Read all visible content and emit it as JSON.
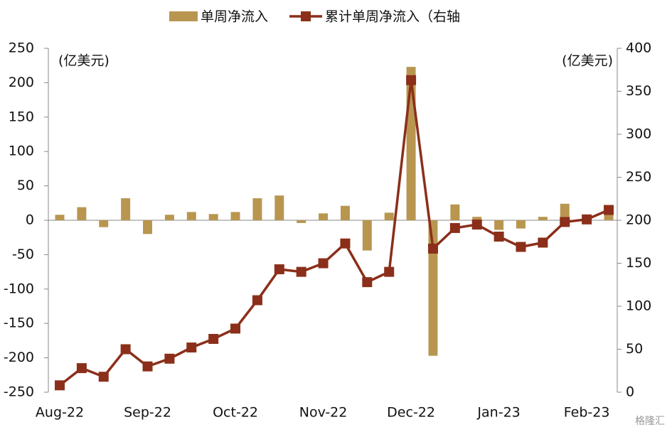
{
  "chart_data": {
    "type": "bar-line",
    "legend": "top",
    "y_label": "(亿美元)",
    "y2_label": "(亿美元)",
    "watermark": "格隆汇",
    "categories": [
      "Aug-22",
      null,
      null,
      null,
      "Sep-22",
      null,
      null,
      null,
      "Oct-22",
      null,
      null,
      null,
      "Nov-22",
      null,
      null,
      null,
      "Dec-22",
      null,
      null,
      null,
      "Jan-23",
      null,
      null,
      null,
      "Feb-23",
      null
    ],
    "series": [
      {
        "name": "单周净流入",
        "type": "bar",
        "color": "#b8964f",
        "axis": "y",
        "values": [
          8,
          19,
          -10,
          32,
          -20,
          8,
          12,
          9,
          12,
          32,
          36,
          -4,
          10,
          21,
          -44,
          11,
          223,
          -197,
          23,
          5,
          -14,
          -12,
          5,
          24,
          2,
          10
        ]
      },
      {
        "name": "累计单周净流入（右轴",
        "type": "line",
        "color": "#8b2f1a",
        "axis": "y2",
        "values": [
          8,
          28,
          18,
          50,
          30,
          39,
          52,
          62,
          74,
          107,
          143,
          140,
          150,
          173,
          128,
          140,
          363,
          167,
          191,
          195,
          181,
          169,
          174,
          198,
          201,
          212
        ]
      }
    ],
    "ylim": [
      -250,
      250
    ],
    "yticks": [
      -250,
      -200,
      -150,
      -100,
      -50,
      0,
      50,
      100,
      150,
      200,
      250
    ],
    "y2lim": [
      0,
      400
    ],
    "y2ticks": [
      0,
      50,
      100,
      150,
      200,
      250,
      300,
      350,
      400
    ]
  }
}
